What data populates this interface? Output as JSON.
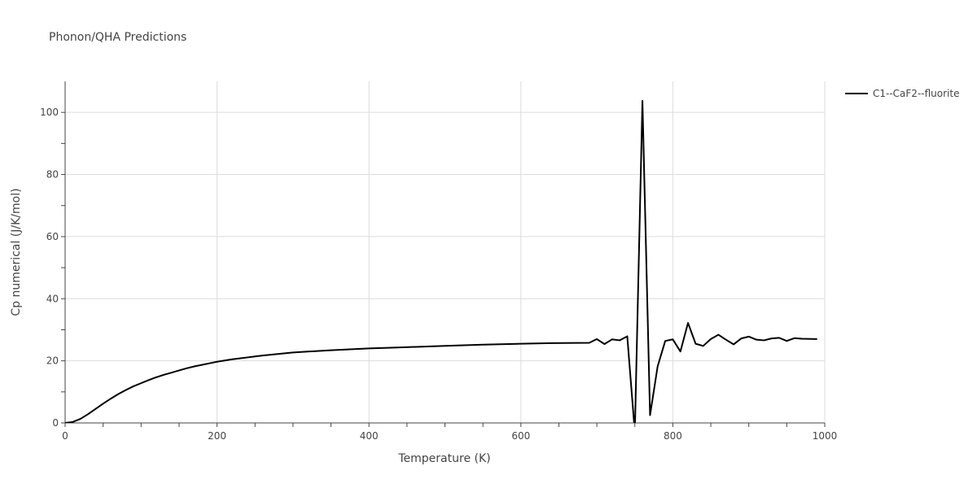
{
  "chart_data": {
    "type": "line",
    "title": "Phonon/QHA Predictions",
    "xlabel": "Temperature (K)",
    "ylabel": "Cp numerical (J/K/mol)",
    "xlim": [
      0,
      1000
    ],
    "ylim": [
      0,
      110
    ],
    "xticks": [
      0,
      200,
      400,
      600,
      800,
      1000
    ],
    "yticks": [
      0,
      20,
      40,
      60,
      80,
      100
    ],
    "grid": true,
    "legend_position": "top-right",
    "series": [
      {
        "name": "C1--CaF2--fluorite",
        "color": "#000000",
        "x": [
          0,
          10,
          20,
          30,
          40,
          50,
          60,
          70,
          80,
          90,
          100,
          110,
          120,
          130,
          140,
          150,
          160,
          170,
          180,
          190,
          200,
          210,
          220,
          230,
          240,
          250,
          260,
          280,
          300,
          350,
          400,
          450,
          500,
          550,
          600,
          640,
          690,
          700,
          710,
          720,
          730,
          740,
          750,
          760,
          770,
          780,
          790,
          800,
          810,
          820,
          830,
          840,
          850,
          860,
          870,
          880,
          890,
          900,
          910,
          920,
          930,
          940,
          950,
          960,
          970,
          990
        ],
        "y": [
          0,
          0.3,
          1.3,
          2.8,
          4.5,
          6.2,
          7.8,
          9.3,
          10.6,
          11.8,
          12.8,
          13.8,
          14.7,
          15.5,
          16.2,
          16.9,
          17.6,
          18.2,
          18.7,
          19.2,
          19.7,
          20.1,
          20.5,
          20.8,
          21.1,
          21.4,
          21.7,
          22.2,
          22.7,
          23.4,
          24.0,
          24.4,
          24.8,
          25.2,
          25.5,
          25.7,
          25.8,
          27.0,
          25.4,
          26.9,
          26.6,
          27.9,
          -3.0,
          103.7,
          2.5,
          18.2,
          26.4,
          26.9,
          23.0,
          32.2,
          25.5,
          24.8,
          27.0,
          28.4,
          26.8,
          25.3,
          27.2,
          27.8,
          26.8,
          26.6,
          27.2,
          27.4,
          26.4,
          27.3,
          27.1,
          27.0
        ]
      }
    ]
  }
}
